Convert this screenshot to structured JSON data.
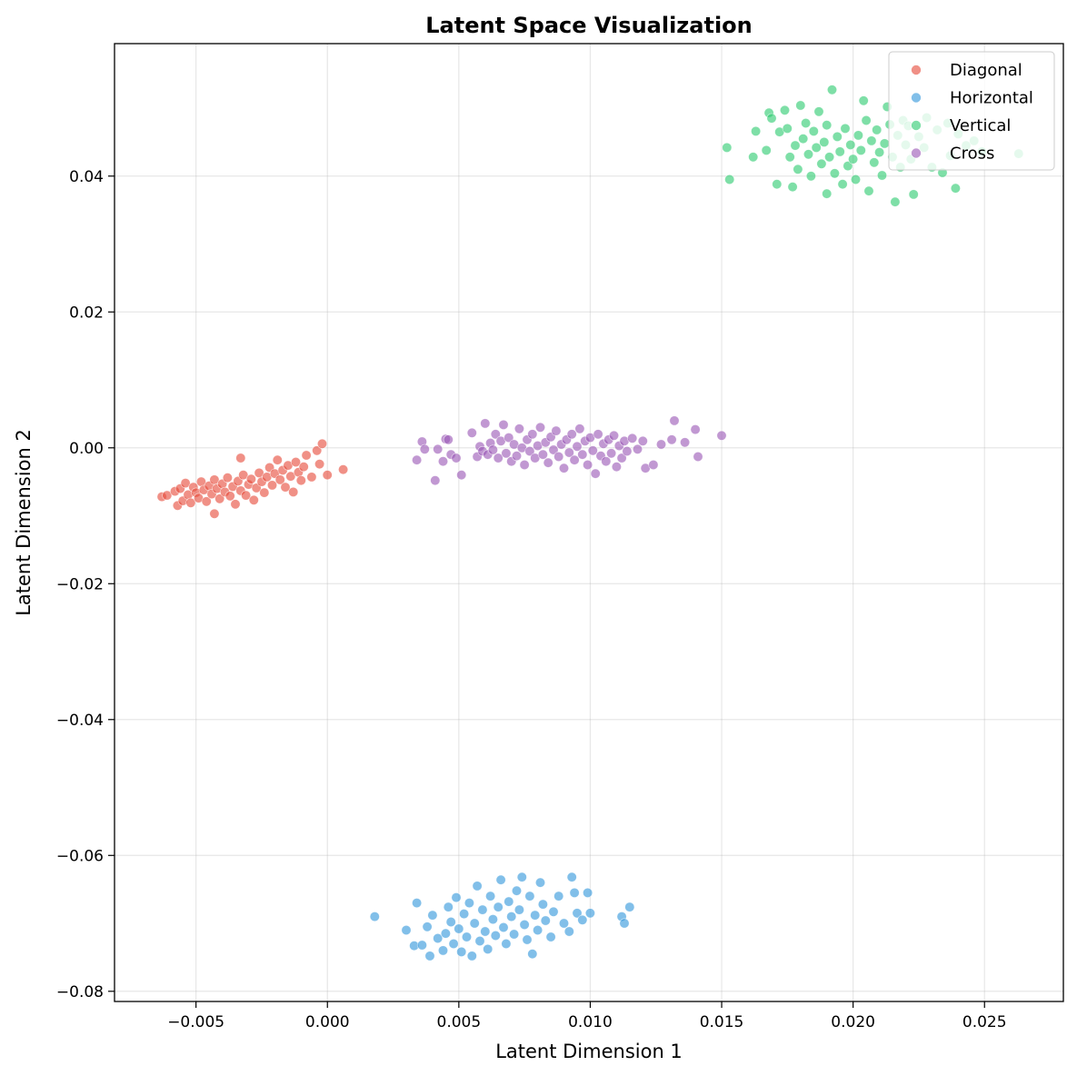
{
  "chart_data": {
    "type": "scatter",
    "title": "Latent Space Visualization",
    "xlabel": "Latent Dimension 1",
    "ylabel": "Latent Dimension 2",
    "xlim": [
      -0.0081,
      0.028
    ],
    "ylim": [
      -0.0815,
      0.0595
    ],
    "x_ticks": [
      -0.005,
      0.0,
      0.005,
      0.01,
      0.015,
      0.02,
      0.025
    ],
    "x_tick_labels": [
      "−0.005",
      "0.000",
      "0.005",
      "0.010",
      "0.015",
      "0.020",
      "0.025"
    ],
    "y_ticks": [
      -0.08,
      -0.06,
      -0.04,
      -0.02,
      0.0,
      0.02,
      0.04
    ],
    "y_tick_labels": [
      "−0.08",
      "−0.06",
      "−0.04",
      "−0.02",
      "0.00",
      "0.02",
      "0.04"
    ],
    "grid": true,
    "legend_position": "top-right",
    "series": [
      {
        "name": "Diagonal",
        "color": "#e74c3c",
        "points": [
          [
            -0.0063,
            -0.0072
          ],
          [
            -0.0061,
            -0.007
          ],
          [
            -0.0058,
            -0.0064
          ],
          [
            -0.0057,
            -0.0085
          ],
          [
            -0.0056,
            -0.006
          ],
          [
            -0.0055,
            -0.0078
          ],
          [
            -0.0054,
            -0.0052
          ],
          [
            -0.0053,
            -0.0069
          ],
          [
            -0.0052,
            -0.0081
          ],
          [
            -0.0051,
            -0.0058
          ],
          [
            -0.005,
            -0.0066
          ],
          [
            -0.0049,
            -0.0074
          ],
          [
            -0.0048,
            -0.005
          ],
          [
            -0.0047,
            -0.0062
          ],
          [
            -0.0046,
            -0.0079
          ],
          [
            -0.0045,
            -0.0056
          ],
          [
            -0.0044,
            -0.0068
          ],
          [
            -0.0043,
            -0.0047
          ],
          [
            -0.0043,
            -0.0097
          ],
          [
            -0.0042,
            -0.006
          ],
          [
            -0.0041,
            -0.0075
          ],
          [
            -0.004,
            -0.0053
          ],
          [
            -0.0039,
            -0.0065
          ],
          [
            -0.0038,
            -0.0044
          ],
          [
            -0.0037,
            -0.0071
          ],
          [
            -0.0036,
            -0.0057
          ],
          [
            -0.0035,
            -0.0083
          ],
          [
            -0.0034,
            -0.0049
          ],
          [
            -0.0033,
            -0.0015
          ],
          [
            -0.0033,
            -0.0063
          ],
          [
            -0.0032,
            -0.004
          ],
          [
            -0.0031,
            -0.007
          ],
          [
            -0.003,
            -0.0054
          ],
          [
            -0.0029,
            -0.0046
          ],
          [
            -0.0028,
            -0.0077
          ],
          [
            -0.0027,
            -0.0059
          ],
          [
            -0.0026,
            -0.0037
          ],
          [
            -0.0025,
            -0.005
          ],
          [
            -0.0024,
            -0.0066
          ],
          [
            -0.0023,
            -0.0043
          ],
          [
            -0.0022,
            -0.0029
          ],
          [
            -0.0021,
            -0.0055
          ],
          [
            -0.002,
            -0.0038
          ],
          [
            -0.0019,
            -0.0018
          ],
          [
            -0.0018,
            -0.0047
          ],
          [
            -0.0017,
            -0.0033
          ],
          [
            -0.0016,
            -0.0058
          ],
          [
            -0.0015,
            -0.0026
          ],
          [
            -0.0014,
            -0.0042
          ],
          [
            -0.0013,
            -0.0065
          ],
          [
            -0.0012,
            -0.0021
          ],
          [
            -0.0011,
            -0.0036
          ],
          [
            -0.001,
            -0.0048
          ],
          [
            -0.0009,
            -0.0028
          ],
          [
            -0.0008,
            -0.0011
          ],
          [
            -0.0006,
            -0.0043
          ],
          [
            -0.0004,
            -0.0004
          ],
          [
            -0.0003,
            -0.0024
          ],
          [
            -0.0002,
            0.0006
          ],
          [
            0.0,
            -0.004
          ],
          [
            0.0006,
            -0.0032
          ]
        ]
      },
      {
        "name": "Horizontal",
        "color": "#3498db",
        "points": [
          [
            0.0018,
            -0.069
          ],
          [
            0.003,
            -0.071
          ],
          [
            0.0033,
            -0.0733
          ],
          [
            0.0034,
            -0.067
          ],
          [
            0.0036,
            -0.0732
          ],
          [
            0.0038,
            -0.0705
          ],
          [
            0.0039,
            -0.0748
          ],
          [
            0.004,
            -0.0688
          ],
          [
            0.0042,
            -0.0722
          ],
          [
            0.0044,
            -0.074
          ],
          [
            0.0045,
            -0.0715
          ],
          [
            0.0046,
            -0.0676
          ],
          [
            0.0047,
            -0.0698
          ],
          [
            0.0048,
            -0.073
          ],
          [
            0.0049,
            -0.0662
          ],
          [
            0.005,
            -0.0708
          ],
          [
            0.0051,
            -0.0742
          ],
          [
            0.0052,
            -0.0686
          ],
          [
            0.0053,
            -0.072
          ],
          [
            0.0054,
            -0.067
          ],
          [
            0.0055,
            -0.0748
          ],
          [
            0.0056,
            -0.07
          ],
          [
            0.0057,
            -0.0645
          ],
          [
            0.0058,
            -0.0726
          ],
          [
            0.0059,
            -0.068
          ],
          [
            0.006,
            -0.0712
          ],
          [
            0.0061,
            -0.0738
          ],
          [
            0.0062,
            -0.066
          ],
          [
            0.0063,
            -0.0694
          ],
          [
            0.0064,
            -0.0718
          ],
          [
            0.0065,
            -0.0676
          ],
          [
            0.0066,
            -0.0636
          ],
          [
            0.0067,
            -0.0706
          ],
          [
            0.0068,
            -0.073
          ],
          [
            0.0069,
            -0.0668
          ],
          [
            0.007,
            -0.069
          ],
          [
            0.0071,
            -0.0716
          ],
          [
            0.0072,
            -0.0652
          ],
          [
            0.0073,
            -0.068
          ],
          [
            0.0074,
            -0.0632
          ],
          [
            0.0075,
            -0.0702
          ],
          [
            0.0076,
            -0.0724
          ],
          [
            0.0077,
            -0.066
          ],
          [
            0.0078,
            -0.0745
          ],
          [
            0.0079,
            -0.0688
          ],
          [
            0.008,
            -0.071
          ],
          [
            0.0081,
            -0.064
          ],
          [
            0.0082,
            -0.0672
          ],
          [
            0.0083,
            -0.0696
          ],
          [
            0.0085,
            -0.072
          ],
          [
            0.0086,
            -0.0683
          ],
          [
            0.0088,
            -0.066
          ],
          [
            0.009,
            -0.07
          ],
          [
            0.0092,
            -0.0712
          ],
          [
            0.0093,
            -0.0632
          ],
          [
            0.0094,
            -0.0655
          ],
          [
            0.0095,
            -0.0685
          ],
          [
            0.0097,
            -0.0695
          ],
          [
            0.0099,
            -0.0655
          ],
          [
            0.01,
            -0.0685
          ],
          [
            0.0112,
            -0.069
          ],
          [
            0.0113,
            -0.07
          ],
          [
            0.0115,
            -0.0676
          ]
        ]
      },
      {
        "name": "Vertical",
        "color": "#2ecc71",
        "points": [
          [
            0.0152,
            0.0442
          ],
          [
            0.0153,
            0.0395
          ],
          [
            0.0162,
            0.0428
          ],
          [
            0.0163,
            0.0466
          ],
          [
            0.0167,
            0.0438
          ],
          [
            0.0168,
            0.0493
          ],
          [
            0.0169,
            0.0485
          ],
          [
            0.0171,
            0.0388
          ],
          [
            0.0172,
            0.0465
          ],
          [
            0.0174,
            0.0497
          ],
          [
            0.0175,
            0.047
          ],
          [
            0.0176,
            0.0428
          ],
          [
            0.0177,
            0.0384
          ],
          [
            0.0178,
            0.0445
          ],
          [
            0.0179,
            0.041
          ],
          [
            0.018,
            0.0504
          ],
          [
            0.0181,
            0.0455
          ],
          [
            0.0182,
            0.0478
          ],
          [
            0.0183,
            0.0432
          ],
          [
            0.0184,
            0.04
          ],
          [
            0.0185,
            0.0466
          ],
          [
            0.0186,
            0.0442
          ],
          [
            0.0187,
            0.0495
          ],
          [
            0.0188,
            0.0418
          ],
          [
            0.0189,
            0.045
          ],
          [
            0.019,
            0.0374
          ],
          [
            0.019,
            0.0475
          ],
          [
            0.0191,
            0.0428
          ],
          [
            0.0192,
            0.0527
          ],
          [
            0.0193,
            0.0404
          ],
          [
            0.0194,
            0.0458
          ],
          [
            0.0195,
            0.0436
          ],
          [
            0.0196,
            0.0388
          ],
          [
            0.0197,
            0.047
          ],
          [
            0.0198,
            0.0415
          ],
          [
            0.0199,
            0.0446
          ],
          [
            0.02,
            0.0425
          ],
          [
            0.0201,
            0.0395
          ],
          [
            0.0202,
            0.046
          ],
          [
            0.0203,
            0.0438
          ],
          [
            0.0204,
            0.0511
          ],
          [
            0.0205,
            0.0482
          ],
          [
            0.0206,
            0.0378
          ],
          [
            0.0207,
            0.0452
          ],
          [
            0.0208,
            0.042
          ],
          [
            0.0209,
            0.0468
          ],
          [
            0.021,
            0.0435
          ],
          [
            0.0211,
            0.0401
          ],
          [
            0.0212,
            0.0448
          ],
          [
            0.0213,
            0.0502
          ],
          [
            0.0214,
            0.0476
          ],
          [
            0.0215,
            0.0428
          ],
          [
            0.0216,
            0.0362
          ],
          [
            0.0217,
            0.046
          ],
          [
            0.0218,
            0.0413
          ],
          [
            0.0219,
            0.0482
          ],
          [
            0.022,
            0.0446
          ],
          [
            0.0221,
            0.0474
          ],
          [
            0.0222,
            0.0425
          ],
          [
            0.0223,
            0.0373
          ],
          [
            0.0225,
            0.0458
          ],
          [
            0.0227,
            0.0442
          ],
          [
            0.0228,
            0.0486
          ],
          [
            0.023,
            0.0413
          ],
          [
            0.0232,
            0.0468
          ],
          [
            0.0234,
            0.0405
          ],
          [
            0.0236,
            0.0478
          ],
          [
            0.0237,
            0.043
          ],
          [
            0.0239,
            0.0382
          ],
          [
            0.024,
            0.0462
          ],
          [
            0.0243,
            0.0445
          ],
          [
            0.0246,
            0.0452
          ],
          [
            0.0249,
            0.0436
          ],
          [
            0.0263,
            0.0433
          ]
        ]
      },
      {
        "name": "Cross",
        "color": "#9b59b6",
        "points": [
          [
            0.0034,
            -0.0018
          ],
          [
            0.0036,
            0.0009
          ],
          [
            0.0037,
            -0.0002
          ],
          [
            0.0041,
            -0.0048
          ],
          [
            0.0042,
            -0.0002
          ],
          [
            0.0044,
            -0.002
          ],
          [
            0.0045,
            0.0013
          ],
          [
            0.0046,
            0.0012
          ],
          [
            0.0047,
            -0.001
          ],
          [
            0.0049,
            -0.0015
          ],
          [
            0.0051,
            -0.004
          ],
          [
            0.0055,
            0.0022
          ],
          [
            0.0057,
            -0.0013
          ],
          [
            0.0058,
            0.0002
          ],
          [
            0.0059,
            -0.0005
          ],
          [
            0.006,
            0.0036
          ],
          [
            0.0061,
            -0.001
          ],
          [
            0.0062,
            0.0007
          ],
          [
            0.0063,
            -0.0003
          ],
          [
            0.0064,
            0.002
          ],
          [
            0.0065,
            -0.0015
          ],
          [
            0.0066,
            0.001
          ],
          [
            0.0067,
            0.0034
          ],
          [
            0.0068,
            -0.0008
          ],
          [
            0.0069,
            0.0015
          ],
          [
            0.007,
            -0.002
          ],
          [
            0.0071,
            0.0005
          ],
          [
            0.0072,
            -0.0012
          ],
          [
            0.0073,
            0.0028
          ],
          [
            0.0074,
            0.0
          ],
          [
            0.0075,
            -0.0025
          ],
          [
            0.0076,
            0.0012
          ],
          [
            0.0077,
            -0.0005
          ],
          [
            0.0078,
            0.002
          ],
          [
            0.0079,
            -0.0015
          ],
          [
            0.008,
            0.0003
          ],
          [
            0.0081,
            0.003
          ],
          [
            0.0082,
            -0.001
          ],
          [
            0.0083,
            0.0008
          ],
          [
            0.0084,
            -0.0022
          ],
          [
            0.0085,
            0.0016
          ],
          [
            0.0086,
            -0.0003
          ],
          [
            0.0087,
            0.0025
          ],
          [
            0.0088,
            -0.0013
          ],
          [
            0.0089,
            0.0005
          ],
          [
            0.009,
            -0.003
          ],
          [
            0.0091,
            0.0012
          ],
          [
            0.0092,
            -0.0007
          ],
          [
            0.0093,
            0.002
          ],
          [
            0.0094,
            -0.0018
          ],
          [
            0.0095,
            0.0002
          ],
          [
            0.0096,
            0.0028
          ],
          [
            0.0097,
            -0.001
          ],
          [
            0.0098,
            0.001
          ],
          [
            0.0099,
            -0.0025
          ],
          [
            0.01,
            0.0015
          ],
          [
            0.0101,
            -0.0004
          ],
          [
            0.0102,
            -0.0038
          ],
          [
            0.0103,
            0.002
          ],
          [
            0.0104,
            -0.0012
          ],
          [
            0.0105,
            0.0006
          ],
          [
            0.0106,
            -0.002
          ],
          [
            0.0107,
            0.0012
          ],
          [
            0.0108,
            -0.0008
          ],
          [
            0.0109,
            0.0018
          ],
          [
            0.011,
            -0.0028
          ],
          [
            0.0111,
            0.0003
          ],
          [
            0.0112,
            -0.0015
          ],
          [
            0.0113,
            0.001
          ],
          [
            0.0114,
            -0.0005
          ],
          [
            0.0116,
            0.0014
          ],
          [
            0.0118,
            -0.0002
          ],
          [
            0.012,
            0.001
          ],
          [
            0.0121,
            -0.003
          ],
          [
            0.0124,
            -0.0025
          ],
          [
            0.0127,
            0.0005
          ],
          [
            0.0131,
            0.0012
          ],
          [
            0.0132,
            0.004
          ],
          [
            0.0136,
            0.0008
          ],
          [
            0.014,
            0.0027
          ],
          [
            0.0141,
            -0.0013
          ],
          [
            0.015,
            0.0018
          ]
        ]
      }
    ]
  }
}
